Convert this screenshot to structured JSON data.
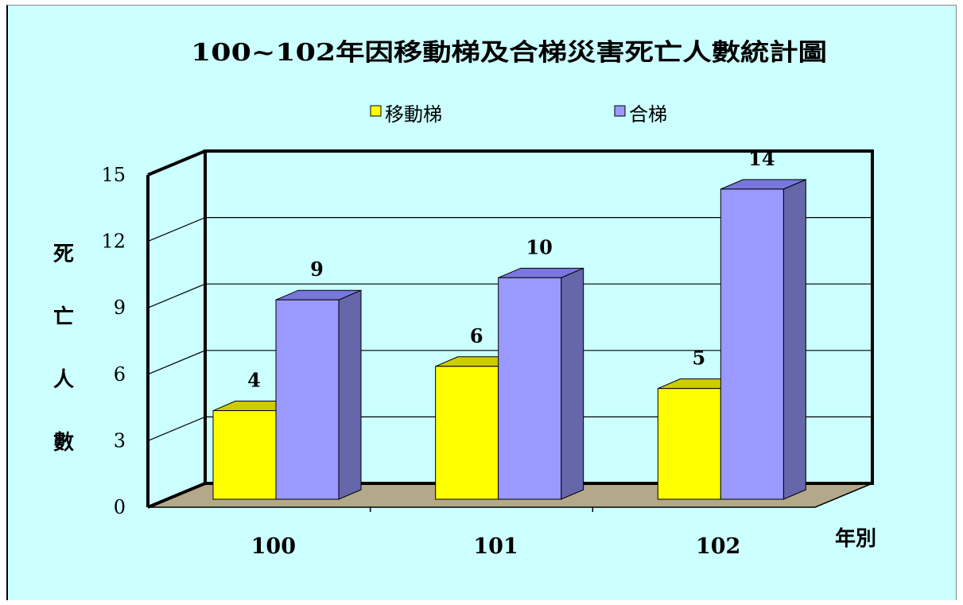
{
  "chart_data": {
    "type": "bar",
    "style": "3d-clustered",
    "title": "100~102年因移動梯及合梯災害死亡人數統計圖",
    "xlabel": "年別",
    "ylabel": "死亡人數",
    "categories": [
      "100",
      "101",
      "102"
    ],
    "series": [
      {
        "name": "移動梯",
        "values": [
          4,
          6,
          5
        ],
        "color": "#ffff00",
        "top_color": "#cccc00"
      },
      {
        "name": "合梯",
        "values": [
          9,
          10,
          14
        ],
        "color": "#9999ff",
        "top_color": "#7777dd",
        "side_color": "#6666aa"
      }
    ],
    "ylim": [
      0,
      15
    ],
    "yticks": [
      "0",
      "3",
      "6",
      "9",
      "12",
      "15"
    ],
    "grid": true,
    "legend_position": "top",
    "background": "#ccffff",
    "floor_color": "#b3a98a"
  }
}
